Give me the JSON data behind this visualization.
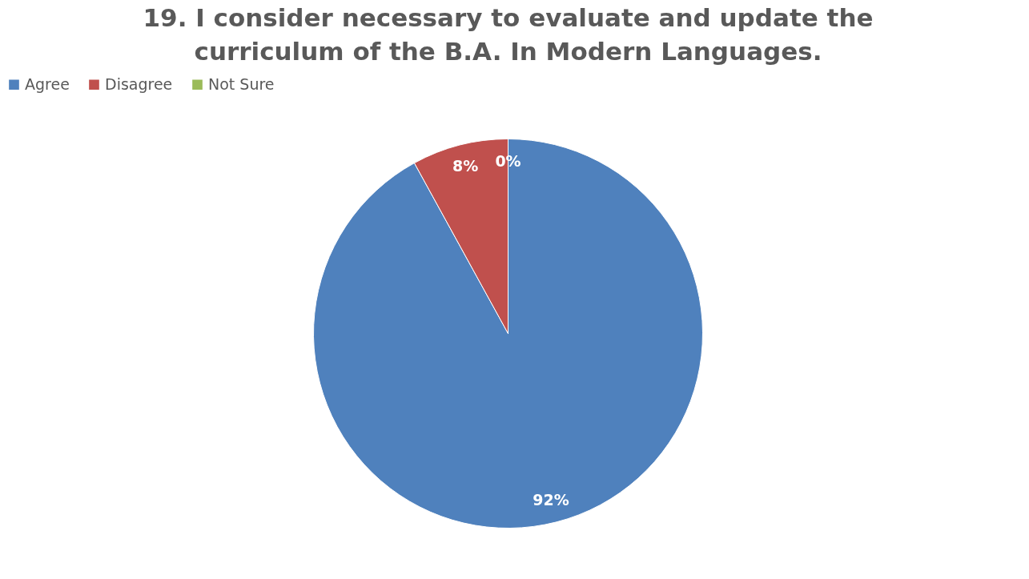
{
  "chart_data": {
    "type": "pie",
    "title": "19. I consider necessary to evaluate and update the curriculum of the B.A. In Modern Languages.",
    "categories": [
      "Agree",
      "Disagree",
      "Not Sure"
    ],
    "values": [
      92,
      8,
      0
    ],
    "colors": [
      "#4f81bd",
      "#c0504d",
      "#9bbb59"
    ],
    "value_labels": [
      "92%",
      "8%",
      "0%"
    ],
    "legend": "top"
  }
}
